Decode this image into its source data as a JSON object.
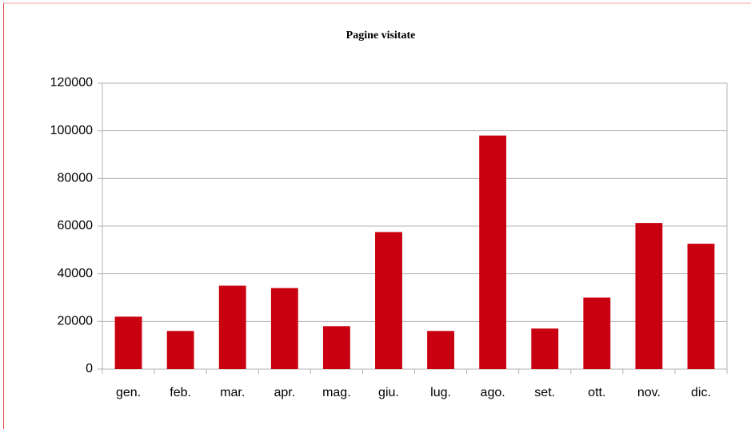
{
  "chart_data": {
    "type": "bar",
    "title": "Pagine visitate",
    "categories": [
      "gen.",
      "feb.",
      "mar.",
      "apr.",
      "mag.",
      "giu.",
      "lug.",
      "ago.",
      "set.",
      "ott.",
      "nov.",
      "dic."
    ],
    "values": [
      22000,
      16000,
      35000,
      34000,
      18000,
      57500,
      16000,
      98000,
      17000,
      30000,
      61300,
      52600
    ],
    "color": "#c9000f",
    "ylim": [
      0,
      120000
    ],
    "yticks": [
      0,
      20000,
      40000,
      60000,
      80000,
      100000,
      120000
    ],
    "grid": true
  }
}
